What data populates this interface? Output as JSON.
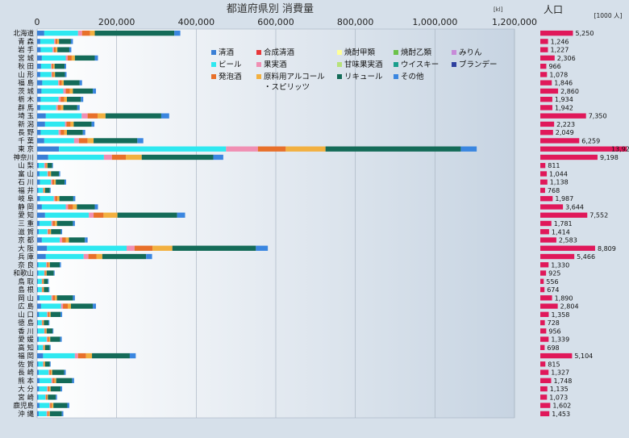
{
  "chart_data": [
    {
      "type": "bar",
      "orientation": "horizontal",
      "stacked": true,
      "title": "都道府県別 消費量",
      "unit_label": "[kl]",
      "xlim": [
        0,
        1200000
      ],
      "x_ticks": [
        "0",
        "200,000",
        "400,000",
        "600,000",
        "800,000",
        "1,000,000",
        "1,200,000"
      ],
      "grid": true,
      "legend_position": "top-center",
      "categories": [
        "北海道",
        "青 森",
        "岩 手",
        "宮 城",
        "秋 田",
        "山 形",
        "福 島",
        "茨 城",
        "栃 木",
        "群 馬",
        "埼 玉",
        "新 潟",
        "長 野",
        "千 葉",
        "東 京",
        "神奈川",
        "山 梨",
        "富 山",
        "石 川",
        "福 井",
        "岐 阜",
        "静 岡",
        "愛 知",
        "三 重",
        "滋 賀",
        "京 都",
        "大 阪",
        "兵 庫",
        "奈 良",
        "和歌山",
        "鳥 取",
        "島 根",
        "岡 山",
        "広 島",
        "山 口",
        "徳 島",
        "香 川",
        "愛 媛",
        "高 知",
        "福 岡",
        "佐 賀",
        "長 崎",
        "熊 本",
        "大 分",
        "宮 崎",
        "鹿児島",
        "沖 縄"
      ],
      "series": [
        {
          "name": "清酒",
          "color": "#3a7fd5",
          "values": [
            18000,
            8000,
            9000,
            12000,
            10000,
            8000,
            13000,
            11000,
            9000,
            8000,
            22000,
            20000,
            9000,
            18000,
            55000,
            28000,
            4000,
            6000,
            7000,
            3000,
            7000,
            12000,
            20000,
            6000,
            4000,
            12000,
            25000,
            22000,
            3000,
            3000,
            2000,
            2000,
            6000,
            10000,
            5000,
            2000,
            2000,
            4000,
            3000,
            15000,
            3000,
            4000,
            6000,
            5000,
            3000,
            6000,
            4000
          ]
        },
        {
          "name": "ビール",
          "color": "#2ee8f0",
          "values": [
            85000,
            35000,
            30000,
            60000,
            25000,
            28000,
            40000,
            55000,
            45000,
            40000,
            90000,
            50000,
            45000,
            75000,
            420000,
            140000,
            14000,
            20000,
            28000,
            12000,
            35000,
            60000,
            110000,
            30000,
            22000,
            45000,
            200000,
            95000,
            20000,
            15000,
            10000,
            10000,
            30000,
            50000,
            20000,
            10000,
            16000,
            20000,
            12000,
            80000,
            12000,
            25000,
            30000,
            20000,
            18000,
            25000,
            20000
          ]
        },
        {
          "name": "果実酒",
          "color": "#f08fb3",
          "values": [
            10000,
            3000,
            3000,
            5000,
            2000,
            2000,
            3000,
            6000,
            5000,
            4000,
            15000,
            4000,
            5000,
            12000,
            80000,
            20000,
            3000,
            2000,
            3000,
            1000,
            3000,
            6000,
            12000,
            3000,
            2000,
            6000,
            20000,
            12000,
            2000,
            1000,
            1000,
            1000,
            3000,
            5000,
            2000,
            1000,
            1000,
            2000,
            1000,
            8000,
            1000,
            2000,
            3000,
            2000,
            1000,
            2000,
            2000
          ]
        },
        {
          "name": "発泡酒",
          "color": "#e8702a",
          "values": [
            20000,
            5000,
            5000,
            10000,
            4000,
            4000,
            6000,
            10000,
            9000,
            8000,
            25000,
            10000,
            9000,
            22000,
            70000,
            35000,
            3000,
            4000,
            5000,
            2000,
            6000,
            12000,
            25000,
            6000,
            4000,
            9000,
            45000,
            20000,
            4000,
            3000,
            2000,
            2000,
            6000,
            12000,
            4000,
            2000,
            3000,
            4000,
            2000,
            20000,
            2000,
            4000,
            5000,
            4000,
            3000,
            4000,
            3000
          ]
        },
        {
          "name": "原料用アルコール・スピリッツ",
          "color": "#f2b040",
          "values": [
            12000,
            4000,
            4000,
            8000,
            3000,
            3000,
            5000,
            8000,
            7000,
            6000,
            20000,
            8000,
            7000,
            15000,
            100000,
            40000,
            2000,
            3000,
            4000,
            2000,
            5000,
            10000,
            35000,
            5000,
            3000,
            8000,
            50000,
            15000,
            3000,
            2000,
            2000,
            2000,
            5000,
            8000,
            3000,
            2000,
            2000,
            3000,
            2000,
            15000,
            2000,
            3000,
            4000,
            3000,
            2000,
            4000,
            3000
          ]
        },
        {
          "name": "リキュール",
          "color": "#146b58",
          "values": [
            200000,
            30000,
            30000,
            50000,
            25000,
            25000,
            40000,
            50000,
            35000,
            35000,
            140000,
            45000,
            40000,
            110000,
            340000,
            180000,
            12000,
            20000,
            22000,
            12000,
            35000,
            45000,
            150000,
            40000,
            25000,
            40000,
            210000,
            110000,
            25000,
            18000,
            10000,
            12000,
            40000,
            55000,
            25000,
            12000,
            15000,
            25000,
            12000,
            95000,
            12000,
            30000,
            40000,
            25000,
            20000,
            35000,
            30000
          ]
        },
        {
          "name": "その他",
          "color": "#3a86e0",
          "values": [
            15000,
            5000,
            5000,
            8000,
            4000,
            4000,
            6000,
            8000,
            6000,
            6000,
            20000,
            7000,
            6000,
            15000,
            40000,
            25000,
            2000,
            3000,
            4000,
            2000,
            5000,
            8000,
            20000,
            5000,
            3000,
            7000,
            30000,
            15000,
            3000,
            2000,
            2000,
            2000,
            5000,
            8000,
            4000,
            2000,
            2000,
            4000,
            2000,
            15000,
            2000,
            4000,
            5000,
            4000,
            3000,
            5000,
            4000
          ]
        }
      ],
      "legend": [
        {
          "name": "清酒",
          "color": "#3a7fd5"
        },
        {
          "name": "合成清酒",
          "color": "#e8373a"
        },
        {
          "name": "焼酎甲類",
          "color": "#ffff99"
        },
        {
          "name": "焼酎乙類",
          "color": "#6cc24a"
        },
        {
          "name": "みりん",
          "color": "#c78ad8"
        },
        {
          "name": "ビール",
          "color": "#2ee8f0"
        },
        {
          "name": "果実酒",
          "color": "#f08fb3"
        },
        {
          "name": "甘味果実酒",
          "color": "#b7e27a"
        },
        {
          "name": "ウイスキー",
          "color": "#1a9e8c"
        },
        {
          "name": "ブランデー",
          "color": "#2e3f9e"
        },
        {
          "name": "発泡酒",
          "color": "#e8702a"
        },
        {
          "name": "原料用アルコール・スピリッツ",
          "color": "#f2b040"
        },
        {
          "name": "リキュール",
          "color": "#146b58"
        },
        {
          "name": "その他",
          "color": "#3a86e0"
        }
      ]
    },
    {
      "type": "bar",
      "orientation": "horizontal",
      "title": "人口",
      "unit_label": "[1000 人]",
      "bar_color": "#e0185a",
      "values": [
        5250,
        1246,
        1227,
        2306,
        966,
        1078,
        1846,
        2860,
        1934,
        1942,
        7350,
        2223,
        2049,
        6259,
        13921,
        9198,
        811,
        1044,
        1138,
        768,
        1987,
        3644,
        7552,
        1781,
        1414,
        2583,
        8809,
        5466,
        1330,
        925,
        556,
        674,
        1890,
        2804,
        1358,
        728,
        956,
        1339,
        698,
        5104,
        815,
        1327,
        1748,
        1135,
        1073,
        1602,
        1453
      ],
      "labels": [
        "5,250",
        "1,246",
        "1,227",
        "2,306",
        "966",
        "1,078",
        "1,846",
        "2,860",
        "1,934",
        "1,942",
        "7,350",
        "2,223",
        "2,049",
        "6,259",
        "13,921",
        "9,198",
        "811",
        "1,044",
        "1,138",
        "768",
        "1,987",
        "3,644",
        "7,552",
        "1,781",
        "1,414",
        "2,583",
        "8,809",
        "5,466",
        "1,330",
        "925",
        "556",
        "674",
        "1,890",
        "2,804",
        "1,358",
        "728",
        "956",
        "1,339",
        "698",
        "5,104",
        "815",
        "1,327",
        "1,748",
        "1,135",
        "1,073",
        "1,602",
        "1,453"
      ]
    }
  ]
}
